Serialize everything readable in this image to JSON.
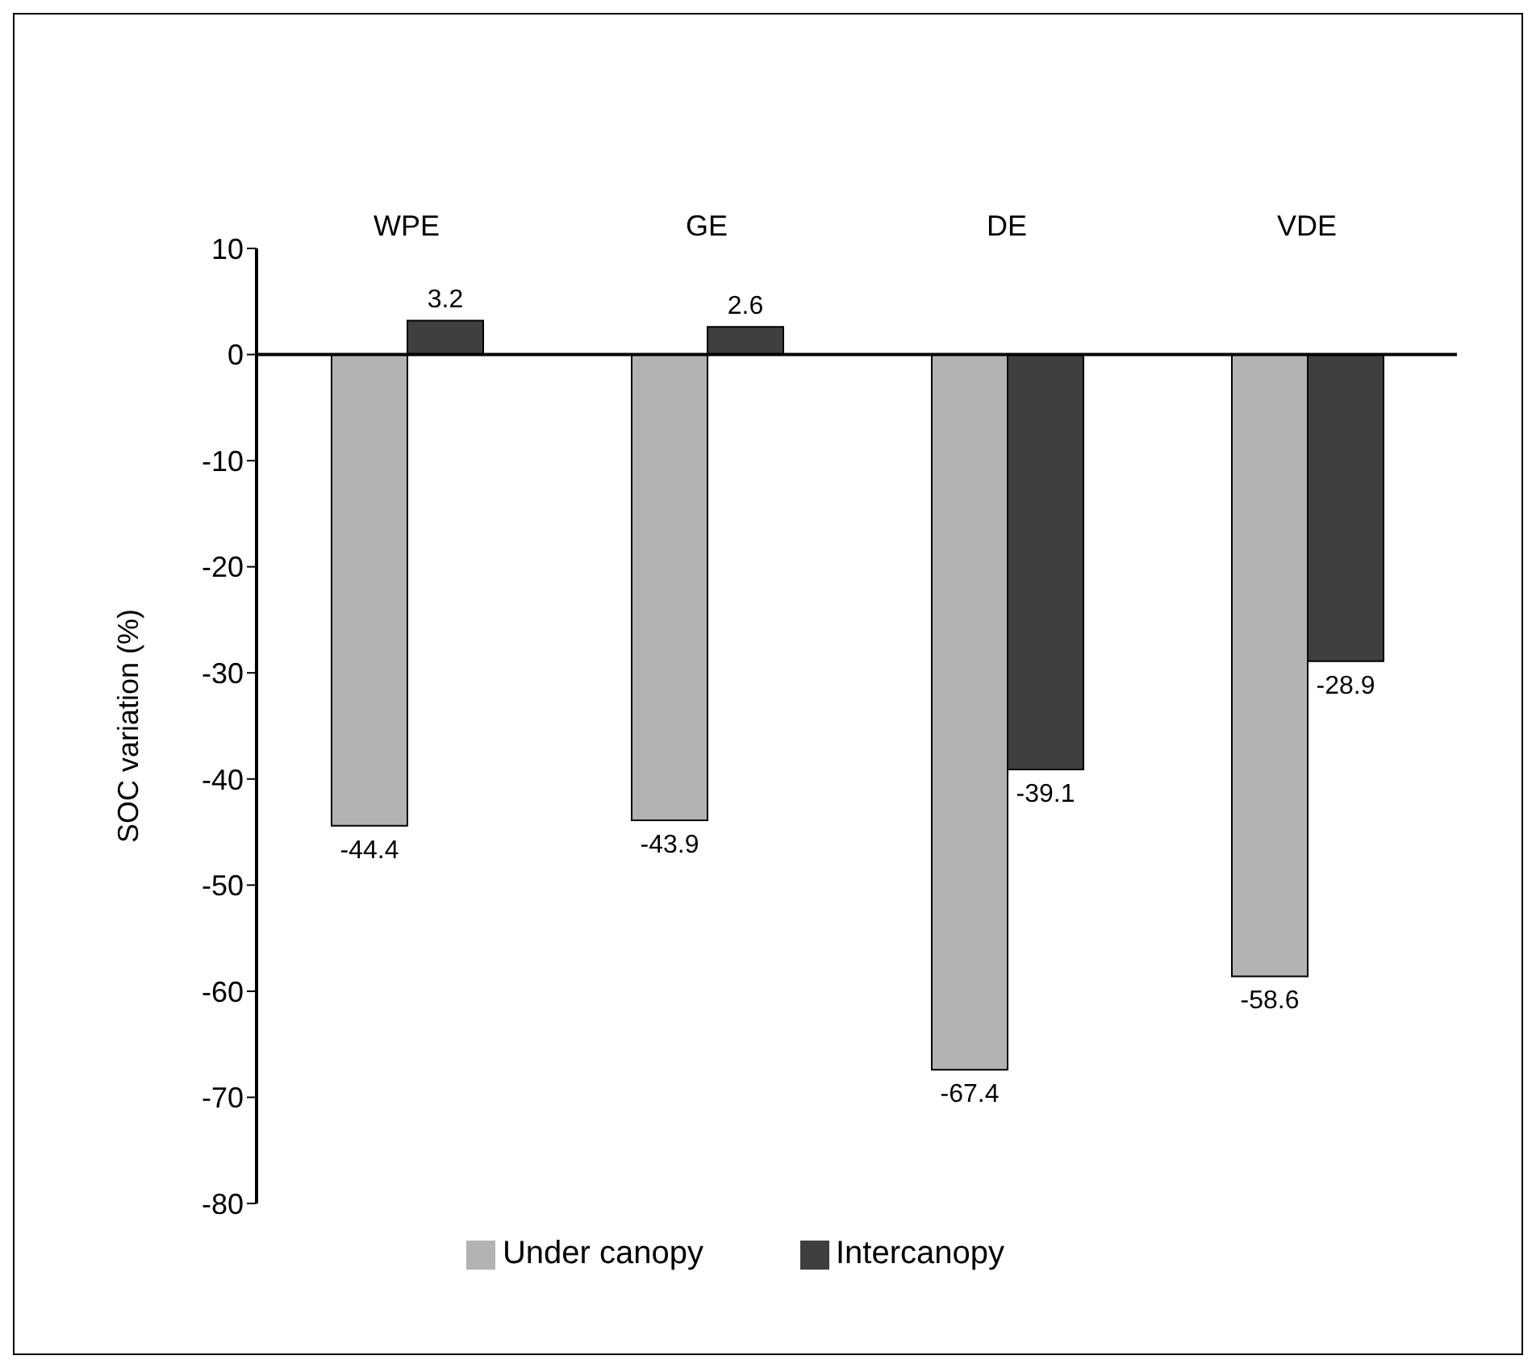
{
  "chart_data": {
    "type": "bar",
    "categories": [
      "WPE",
      "GE",
      "DE",
      "VDE"
    ],
    "series": [
      {
        "name": "Under canopy",
        "color": "#b3b3b3",
        "values": [
          -44.4,
          -43.9,
          -67.4,
          -58.6
        ]
      },
      {
        "name": "Intercanopy",
        "color": "#3f3f3f",
        "values": [
          3.2,
          2.6,
          -39.1,
          -28.9
        ]
      }
    ],
    "ylabel": "SOC  variation (%)",
    "ylim": [
      -80,
      10
    ],
    "yticks": [
      10,
      0,
      -10,
      -20,
      -30,
      -40,
      -50,
      -60,
      -70,
      -80
    ],
    "data_labels": true,
    "legend": "bottom"
  }
}
